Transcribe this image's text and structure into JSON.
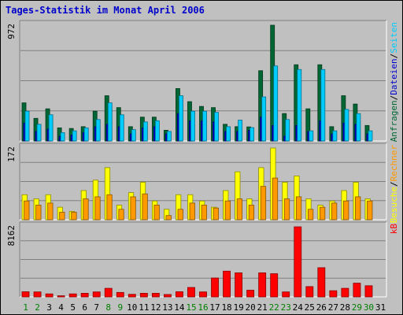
{
  "chart_data": {
    "type": "bar",
    "title": "Tages-Statistik im Monat April 2006",
    "categories": [
      "1",
      "2",
      "3",
      "4",
      "5",
      "6",
      "7",
      "8",
      "9",
      "10",
      "11",
      "12",
      "13",
      "14",
      "15",
      "16",
      "17",
      "18",
      "19",
      "20",
      "21",
      "22",
      "23",
      "24",
      "25",
      "26",
      "27",
      "28",
      "29",
      "30",
      "31"
    ],
    "weekend_days": [
      "1",
      "2",
      "8",
      "9",
      "15",
      "16",
      "22",
      "23",
      "29",
      "30"
    ],
    "grid": true,
    "panels": [
      {
        "id": "requests",
        "ymax_label": "972",
        "ylim": [
          0,
          972
        ],
        "axis_label_parts": [
          {
            "text": "Anfragen",
            "color": "#006633"
          },
          {
            "text": "/",
            "color": "#000000"
          },
          {
            "text": "Dateien",
            "color": "#0000cc"
          },
          {
            "text": "/",
            "color": "#000000"
          },
          {
            "text": "Seiten",
            "color": "#00ccff"
          }
        ],
        "series": [
          {
            "name": "Anfragen",
            "color": "#006633",
            "values": [
              320,
              190,
              270,
              110,
              105,
              120,
              250,
              380,
              280,
              120,
              200,
              200,
              90,
              440,
              330,
              290,
              280,
              140,
              120,
              118,
              590,
              972,
              230,
              640,
              270,
              640,
              120,
              380,
              310,
              130,
              0
            ]
          },
          {
            "name": "Dateien",
            "color": "#0000cc",
            "values": [
              150,
              80,
              100,
              40,
              50,
              70,
              120,
              140,
              120,
              60,
              110,
              120,
              60,
              230,
              170,
              170,
              160,
              80,
              80,
              90,
              200,
              130,
              40,
              130,
              80,
              170,
              60,
              150,
              140,
              60,
              0
            ]
          },
          {
            "name": "Seiten",
            "color": "#00ccff",
            "values": [
              250,
              140,
              220,
              70,
              85,
              110,
              180,
              320,
              220,
              95,
              160,
              170,
              80,
              380,
              250,
              250,
              240,
              120,
              175,
              112,
              370,
              630,
              180,
              600,
              85,
              600,
              85,
              265,
              230,
              85,
              0
            ]
          }
        ]
      },
      {
        "id": "visits",
        "ymax_label": "172",
        "ylim": [
          0,
          172
        ],
        "axis_label_parts": [
          {
            "text": "Besuche",
            "color": "#ffff00"
          },
          {
            "text": "/",
            "color": "#000000"
          },
          {
            "text": "Rechner",
            "color": "#ff9900"
          }
        ],
        "series": [
          {
            "name": "Besuche",
            "color": "#ffff00",
            "values": [
              60,
              50,
              60,
              30,
              20,
              70,
              95,
              125,
              35,
              65,
              90,
              45,
              25,
              60,
              60,
              45,
              30,
              70,
              115,
              50,
              125,
              172,
              90,
              105,
              50,
              35,
              45,
              70,
              90,
              50,
              0
            ]
          },
          {
            "name": "Rechner",
            "color": "#ff9900",
            "values": [
              45,
              35,
              40,
              18,
              18,
              50,
              55,
              60,
              25,
              55,
              62,
              35,
              10,
              25,
              40,
              35,
              28,
              45,
              50,
              35,
              80,
              100,
              50,
              55,
              25,
              30,
              40,
              45,
              55,
              45,
              0
            ]
          }
        ]
      },
      {
        "id": "kb",
        "ymax_label": "8162",
        "ylim": [
          0,
          8162
        ],
        "axis_label_parts": [
          {
            "text": "kB",
            "color": "#ff0000"
          }
        ],
        "series": [
          {
            "name": "kB",
            "color": "#ff0000",
            "values": [
              600,
              580,
              350,
              130,
              350,
              420,
              580,
              1000,
              520,
              300,
              420,
              420,
              280,
              600,
              1100,
              580,
              2200,
              3000,
              2800,
              780,
              2800,
              2700,
              580,
              8162,
              1200,
              3400,
              720,
              1000,
              1600,
              1300,
              0
            ]
          }
        ]
      }
    ]
  }
}
